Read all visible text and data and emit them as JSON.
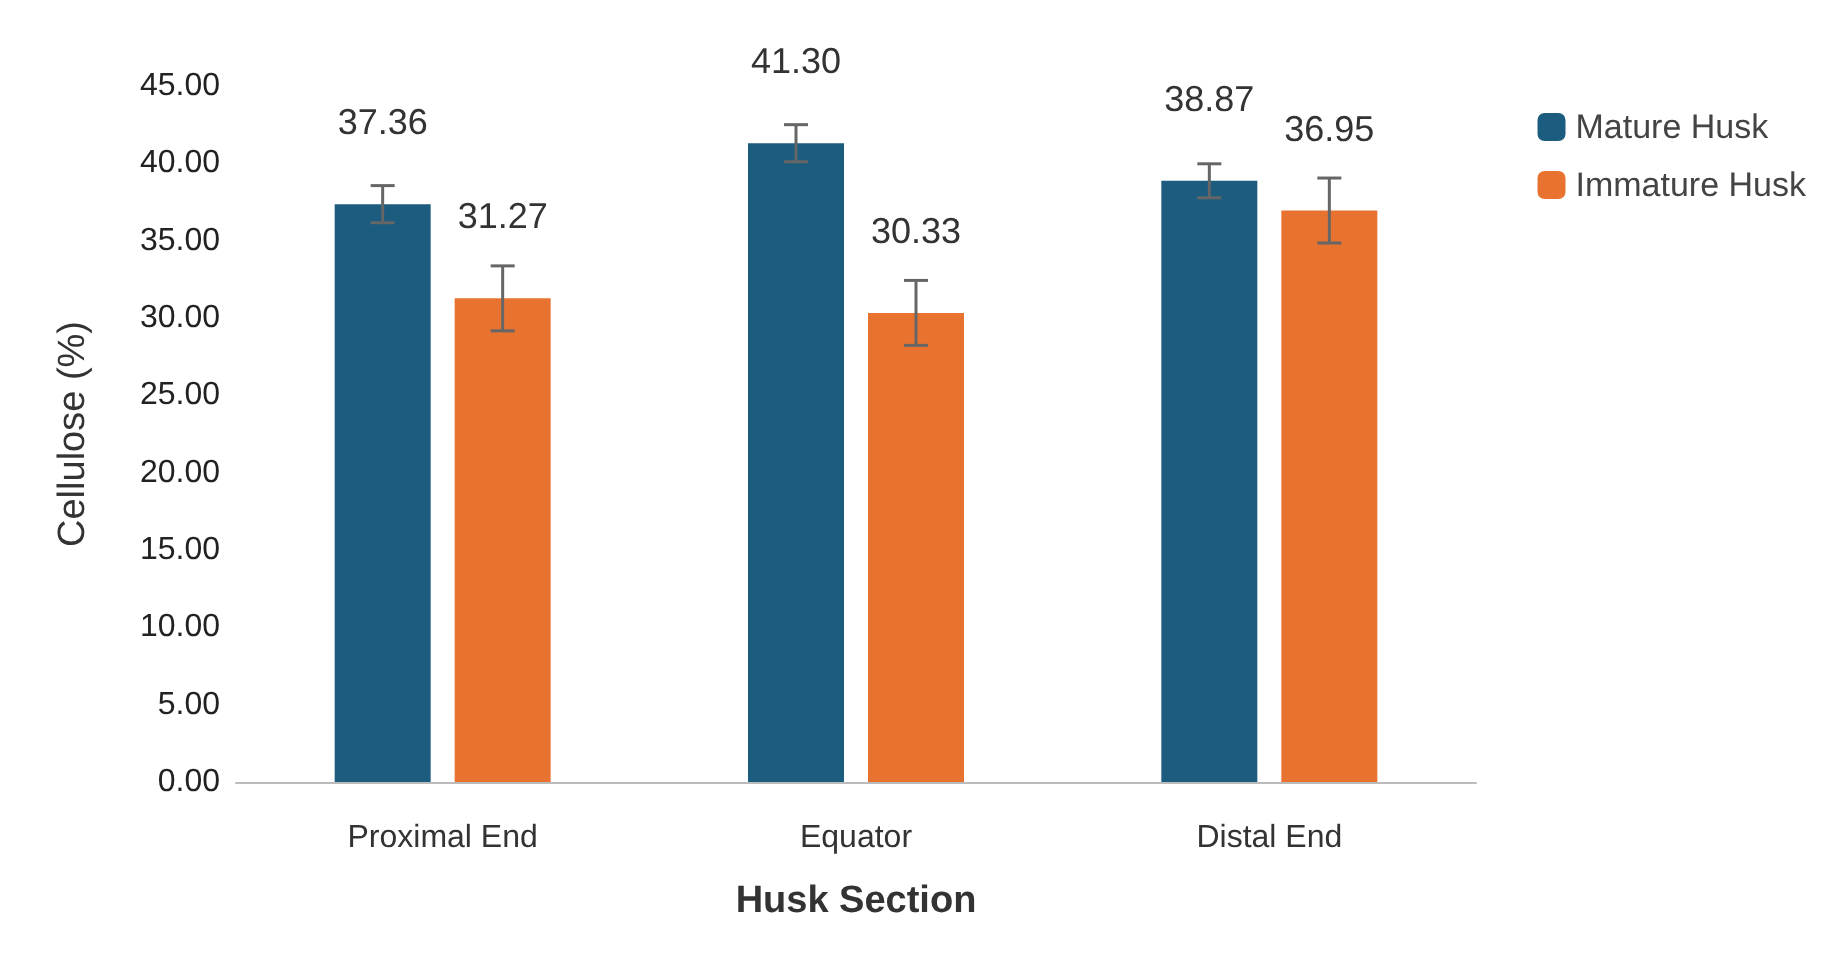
{
  "chart_data": {
    "type": "bar",
    "xlabel": "Husk Section",
    "ylabel": "Cellulose (%)",
    "categories": [
      "Proximal End",
      "Equator",
      "Distal End"
    ],
    "series": [
      {
        "name": "Mature Husk",
        "color": "#1b5c7f",
        "values": [
          37.36,
          41.3,
          38.87
        ],
        "errors": [
          1.2,
          1.2,
          1.1
        ],
        "value_labels": [
          "37.36",
          "41.30",
          "38.87"
        ]
      },
      {
        "name": "Immature Husk",
        "color": "#e87330",
        "values": [
          31.27,
          30.33,
          36.95
        ],
        "errors": [
          2.1,
          2.1,
          2.1
        ],
        "value_labels": [
          "31.27",
          "30.33",
          "36.95"
        ]
      }
    ],
    "ylim": [
      0,
      45
    ],
    "yticks": [
      {
        "value": 0,
        "label": "0.00"
      },
      {
        "value": 5,
        "label": "5.00"
      },
      {
        "value": 10,
        "label": "10.00"
      },
      {
        "value": 15,
        "label": "15.00"
      },
      {
        "value": 20,
        "label": "20.00"
      },
      {
        "value": 25,
        "label": "25.00"
      },
      {
        "value": 30,
        "label": "30.00"
      },
      {
        "value": 35,
        "label": "35.00"
      },
      {
        "value": 40,
        "label": "40.00"
      },
      {
        "value": 45,
        "label": "45.00"
      }
    ],
    "grid": false,
    "legend": "right"
  }
}
